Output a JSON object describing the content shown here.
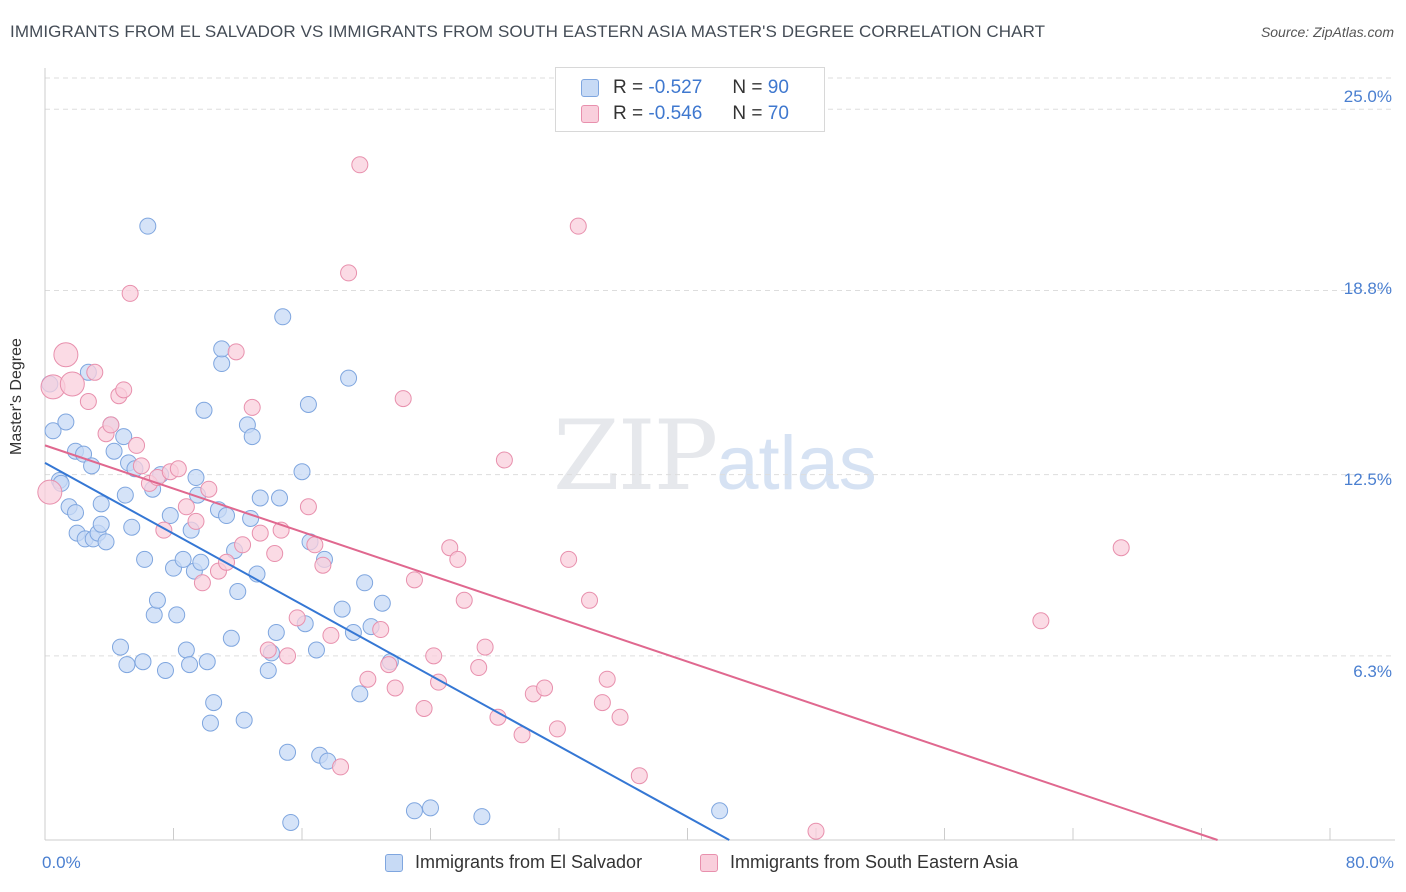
{
  "title": "IMMIGRANTS FROM EL SALVADOR VS IMMIGRANTS FROM SOUTH EASTERN ASIA MASTER'S DEGREE CORRELATION CHART",
  "source": "Source: ZipAtlas.com",
  "watermark": {
    "zip": "ZIP",
    "atlas": "atlas"
  },
  "legend": {
    "r_label": "R =",
    "n_label": "N =",
    "rows": [
      {
        "r": "-0.527",
        "n": "90"
      },
      {
        "r": "-0.546",
        "n": "70"
      }
    ]
  },
  "colors": {
    "blue_fill": "#c7daf5",
    "blue_stroke": "#7fa6df",
    "blue_line": "#3577d4",
    "pink_fill": "#f9cfdc",
    "pink_stroke": "#e890ad",
    "pink_line": "#e0688f",
    "axis_text": "#4a7fd0",
    "grid": "#dddddd"
  },
  "chart_data": {
    "type": "scatter",
    "ylabel": "Master's Degree",
    "x_tick_labels": [
      "0.0%",
      "80.0%"
    ],
    "y_tick_labels": [
      "25.0%",
      "18.8%",
      "12.5%",
      "6.3%"
    ],
    "y_ticks": [
      25.0,
      18.8,
      12.5,
      6.3
    ],
    "xlim": [
      0,
      80
    ],
    "ylim": [
      0,
      26
    ],
    "grid": "horizontal dashed",
    "series": [
      {
        "name": "Immigrants from El Salvador",
        "R": -0.527,
        "N": 90,
        "trend": {
          "x0": 0,
          "y0": 12.9,
          "x1": 42.6,
          "y1": 0
        },
        "points": [
          [
            0.3,
            15.6
          ],
          [
            0.5,
            14.0
          ],
          [
            0.9,
            12.3
          ],
          [
            1.0,
            12.2
          ],
          [
            1.3,
            14.3
          ],
          [
            1.5,
            11.4
          ],
          [
            1.9,
            13.3
          ],
          [
            1.9,
            11.2
          ],
          [
            2.0,
            10.5
          ],
          [
            2.4,
            13.2
          ],
          [
            2.5,
            10.3
          ],
          [
            2.7,
            16.0
          ],
          [
            2.9,
            12.8
          ],
          [
            3.0,
            10.3
          ],
          [
            3.3,
            10.5
          ],
          [
            3.5,
            11.5
          ],
          [
            3.5,
            10.8
          ],
          [
            3.8,
            10.2
          ],
          [
            4.1,
            14.2
          ],
          [
            4.3,
            13.3
          ],
          [
            4.7,
            6.6
          ],
          [
            4.9,
            13.8
          ],
          [
            5.1,
            6.0
          ],
          [
            5.2,
            12.9
          ],
          [
            5.4,
            10.7
          ],
          [
            5.6,
            12.7
          ],
          [
            6.1,
            6.1
          ],
          [
            6.2,
            9.6
          ],
          [
            6.7,
            12.0
          ],
          [
            6.8,
            7.7
          ],
          [
            7.0,
            8.2
          ],
          [
            7.2,
            12.5
          ],
          [
            7.5,
            5.8
          ],
          [
            7.8,
            11.1
          ],
          [
            8.0,
            9.3
          ],
          [
            8.2,
            7.7
          ],
          [
            8.6,
            9.6
          ],
          [
            8.8,
            6.5
          ],
          [
            9.0,
            6.0
          ],
          [
            9.1,
            10.6
          ],
          [
            9.3,
            9.2
          ],
          [
            9.5,
            11.8
          ],
          [
            9.7,
            9.5
          ],
          [
            9.9,
            14.7
          ],
          [
            10.1,
            6.1
          ],
          [
            10.3,
            4.0
          ],
          [
            10.5,
            4.7
          ],
          [
            10.8,
            11.3
          ],
          [
            11.0,
            16.3
          ],
          [
            11.3,
            11.1
          ],
          [
            11.6,
            6.9
          ],
          [
            11.8,
            9.9
          ],
          [
            12.0,
            8.5
          ],
          [
            12.4,
            4.1
          ],
          [
            12.6,
            14.2
          ],
          [
            12.9,
            13.8
          ],
          [
            13.2,
            9.1
          ],
          [
            13.4,
            11.7
          ],
          [
            13.9,
            5.8
          ],
          [
            14.1,
            6.4
          ],
          [
            14.4,
            7.1
          ],
          [
            14.6,
            11.7
          ],
          [
            14.8,
            17.9
          ],
          [
            15.1,
            3.0
          ],
          [
            15.3,
            0.6
          ],
          [
            16.0,
            12.6
          ],
          [
            16.2,
            7.4
          ],
          [
            16.4,
            14.9
          ],
          [
            16.9,
            6.5
          ],
          [
            17.1,
            2.9
          ],
          [
            17.4,
            9.6
          ],
          [
            17.6,
            2.7
          ],
          [
            18.5,
            7.9
          ],
          [
            18.9,
            15.8
          ],
          [
            19.2,
            7.1
          ],
          [
            19.6,
            5.0
          ],
          [
            19.9,
            8.8
          ],
          [
            20.3,
            7.3
          ],
          [
            21.0,
            8.1
          ],
          [
            21.5,
            6.1
          ],
          [
            23.0,
            1.0
          ],
          [
            24.0,
            1.1
          ],
          [
            27.2,
            0.8
          ],
          [
            42.0,
            1.0
          ],
          [
            6.4,
            21.0
          ],
          [
            11.0,
            16.8
          ],
          [
            16.5,
            10.2
          ],
          [
            12.8,
            11.0
          ],
          [
            5.0,
            11.8
          ],
          [
            9.4,
            12.4
          ]
        ]
      },
      {
        "name": "Immigrants from South Eastern Asia",
        "R": -0.546,
        "N": 70,
        "trend": {
          "x0": 0,
          "y0": 13.5,
          "x1": 73.0,
          "y1": 0
        },
        "points": [
          [
            0.3,
            11.9
          ],
          [
            0.5,
            15.5
          ],
          [
            1.3,
            16.6
          ],
          [
            1.7,
            15.6
          ],
          [
            2.7,
            15.0
          ],
          [
            3.1,
            16.0
          ],
          [
            3.8,
            13.9
          ],
          [
            4.1,
            14.2
          ],
          [
            4.6,
            15.2
          ],
          [
            4.9,
            15.4
          ],
          [
            5.3,
            18.7
          ],
          [
            5.7,
            13.5
          ],
          [
            6.0,
            12.8
          ],
          [
            6.5,
            12.2
          ],
          [
            7.0,
            12.4
          ],
          [
            7.4,
            10.6
          ],
          [
            7.8,
            12.6
          ],
          [
            8.3,
            12.7
          ],
          [
            8.8,
            11.4
          ],
          [
            9.4,
            10.9
          ],
          [
            9.8,
            8.8
          ],
          [
            10.2,
            12.0
          ],
          [
            10.8,
            9.2
          ],
          [
            11.3,
            9.5
          ],
          [
            11.9,
            16.7
          ],
          [
            12.3,
            10.1
          ],
          [
            12.9,
            14.8
          ],
          [
            13.4,
            10.5
          ],
          [
            13.9,
            6.5
          ],
          [
            14.3,
            9.8
          ],
          [
            14.7,
            10.6
          ],
          [
            15.1,
            6.3
          ],
          [
            15.7,
            7.6
          ],
          [
            16.4,
            11.4
          ],
          [
            16.8,
            10.1
          ],
          [
            17.3,
            9.4
          ],
          [
            17.8,
            7.0
          ],
          [
            18.4,
            2.5
          ],
          [
            18.9,
            19.4
          ],
          [
            19.6,
            23.1
          ],
          [
            20.1,
            5.5
          ],
          [
            20.9,
            7.2
          ],
          [
            21.4,
            6.0
          ],
          [
            21.8,
            5.2
          ],
          [
            22.3,
            15.1
          ],
          [
            23.0,
            8.9
          ],
          [
            23.6,
            4.5
          ],
          [
            24.2,
            6.3
          ],
          [
            24.5,
            5.4
          ],
          [
            25.2,
            10.0
          ],
          [
            25.7,
            9.6
          ],
          [
            26.1,
            8.2
          ],
          [
            27.0,
            5.9
          ],
          [
            27.4,
            6.6
          ],
          [
            28.2,
            4.2
          ],
          [
            28.6,
            13.0
          ],
          [
            29.7,
            3.6
          ],
          [
            30.4,
            5.0
          ],
          [
            31.1,
            5.2
          ],
          [
            31.9,
            3.8
          ],
          [
            32.6,
            9.6
          ],
          [
            33.2,
            21.0
          ],
          [
            33.9,
            8.2
          ],
          [
            34.7,
            4.7
          ],
          [
            35.0,
            5.5
          ],
          [
            35.8,
            4.2
          ],
          [
            37.0,
            2.2
          ],
          [
            48.0,
            0.3
          ],
          [
            62.0,
            7.5
          ],
          [
            67.0,
            10.0
          ]
        ]
      }
    ]
  }
}
